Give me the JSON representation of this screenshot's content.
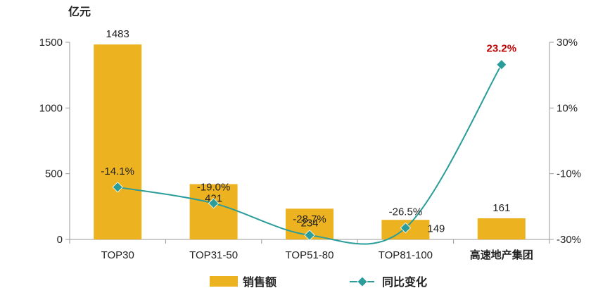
{
  "chart_data": {
    "type": "bar",
    "y_unit_label": "亿元",
    "categories": [
      "TOP30",
      "TOP31-50",
      "TOP51-80",
      "TOP81-100",
      "高速地产集团"
    ],
    "highlight_category": "高速地产集团",
    "series": [
      {
        "name": "销售额",
        "type": "bar",
        "axis": "left",
        "color": "#EDB21F",
        "values": [
          1483,
          421,
          234,
          149,
          161
        ],
        "labels": [
          "1483",
          "421",
          "234",
          "149",
          "161"
        ]
      },
      {
        "name": "同比变化",
        "type": "line",
        "axis": "right",
        "color": "#2A9D9A",
        "values": [
          -14.1,
          -19.0,
          -28.7,
          -26.5,
          23.2
        ],
        "labels": [
          "-14.1%",
          "-19.0%",
          "-28.7%",
          "-26.5%",
          "23.2%"
        ],
        "highlight_color": "#C00000"
      }
    ],
    "y_left": {
      "min": 0,
      "max": 1500,
      "ticks": [
        0,
        500,
        1000,
        1500
      ],
      "tick_labels": [
        "0",
        "500",
        "1000",
        "1500"
      ]
    },
    "y_right": {
      "min": -30,
      "max": 30,
      "ticks": [
        -30,
        -10,
        10,
        30
      ],
      "tick_labels": [
        "-30%",
        "-10%",
        "10%",
        "30%"
      ]
    },
    "legend": {
      "position": "bottom",
      "items": [
        "销售额",
        "同比变化"
      ]
    },
    "grid": false
  }
}
